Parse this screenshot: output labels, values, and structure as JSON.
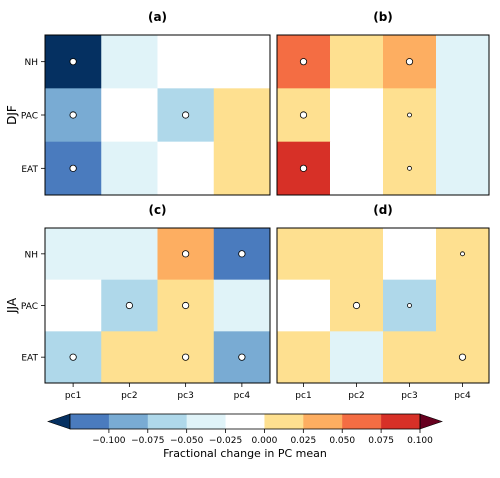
{
  "chart_data": [
    {
      "type": "heatmap",
      "title": "(a)",
      "row_group_label": "DJF",
      "rows": [
        "NH",
        "PAC",
        "EAT"
      ],
      "columns": [
        "pc1",
        "pc2",
        "pc3",
        "pc4"
      ],
      "values": [
        [
          -0.11,
          -0.02,
          0.0,
          0.0
        ],
        [
          -0.07,
          0.0,
          -0.045,
          0.03
        ],
        [
          -0.09,
          -0.02,
          0.0,
          0.03
        ]
      ],
      "marker_size": [
        [
          3,
          0,
          0,
          0
        ],
        [
          3,
          0,
          3,
          0
        ],
        [
          3,
          0,
          0,
          0
        ]
      ]
    },
    {
      "type": "heatmap",
      "title": "(b)",
      "rows": [
        "NH",
        "PAC",
        "EAT"
      ],
      "columns": [
        "pc1",
        "pc2",
        "pc3",
        "pc4"
      ],
      "values": [
        [
          0.095,
          0.03,
          0.07,
          -0.02
        ],
        [
          0.045,
          0.0,
          0.045,
          -0.02
        ],
        [
          0.11,
          0.0,
          0.03,
          -0.02
        ]
      ],
      "marker_size": [
        [
          3,
          0,
          3,
          0
        ],
        [
          3,
          0,
          2,
          0
        ],
        [
          3,
          0,
          2,
          0
        ]
      ]
    },
    {
      "type": "heatmap",
      "title": "(c)",
      "row_group_label": "JJA",
      "rows": [
        "NH",
        "PAC",
        "EAT"
      ],
      "columns": [
        "pc1",
        "pc2",
        "pc3",
        "pc4"
      ],
      "values": [
        [
          -0.02,
          -0.02,
          0.07,
          -0.09
        ],
        [
          0.0,
          -0.035,
          0.045,
          -0.02
        ],
        [
          -0.045,
          0.03,
          0.045,
          -0.07
        ]
      ],
      "marker_size": [
        [
          0,
          0,
          3,
          3
        ],
        [
          0,
          3,
          3,
          0
        ],
        [
          3,
          0,
          3,
          3
        ]
      ]
    },
    {
      "type": "heatmap",
      "title": "(d)",
      "rows": [
        "NH",
        "PAC",
        "EAT"
      ],
      "columns": [
        "pc1",
        "pc2",
        "pc3",
        "pc4"
      ],
      "values": [
        [
          0.03,
          0.03,
          0.0,
          0.03
        ],
        [
          0.0,
          0.045,
          -0.045,
          0.03
        ],
        [
          0.03,
          -0.02,
          0.03,
          0.045
        ]
      ],
      "marker_size": [
        [
          0,
          0,
          0,
          2
        ],
        [
          0,
          3,
          2,
          0
        ],
        [
          0,
          0,
          0,
          3
        ]
      ]
    }
  ],
  "colorbar": {
    "label": "Fractional change in PC mean",
    "ticks": [
      "−0.100",
      "−0.075",
      "−0.050",
      "−0.025",
      "0.000",
      "0.025",
      "0.050",
      "0.075",
      "0.100"
    ],
    "boundaries": [
      -0.125,
      -0.1,
      -0.075,
      -0.05,
      -0.025,
      0.0,
      0.025,
      0.05,
      0.075,
      0.1,
      0.125
    ],
    "colors": [
      "#053061",
      "#4a7bbe",
      "#79abd3",
      "#afd8ea",
      "#e0f3f8",
      "#ffffff",
      "#fee090",
      "#fdae61",
      "#f46d43",
      "#d73027",
      "#67001f"
    ],
    "extend": "both"
  }
}
